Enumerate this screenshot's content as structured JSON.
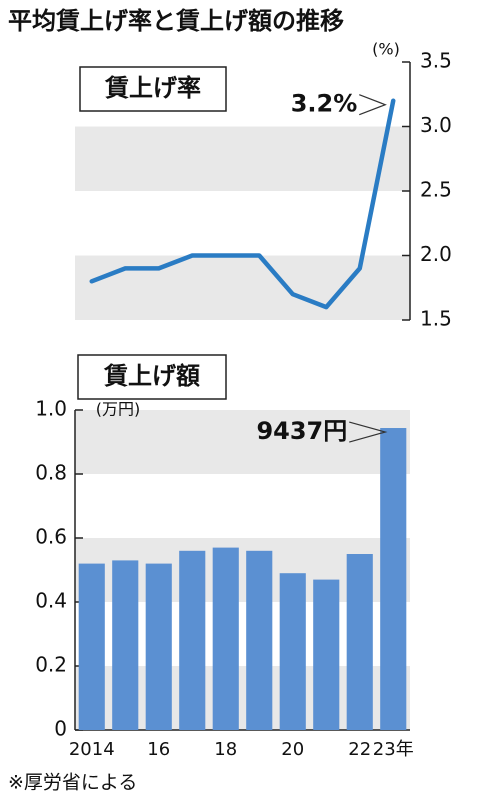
{
  "title": "平均賃上げ率と賃上げ額の推移",
  "source": "※厚労省による",
  "chart_data": [
    {
      "type": "line",
      "label": "賃上げ率",
      "unit": "(%)",
      "values": [
        1.8,
        1.9,
        1.9,
        2.0,
        2.0,
        2.0,
        1.7,
        1.6,
        1.9,
        3.2
      ],
      "value_labels": [
        null,
        null,
        null,
        null,
        null,
        null,
        null,
        null,
        null,
        "3.2%"
      ],
      "color": "#2a7cc4",
      "ylim": [
        1.5,
        3.5
      ],
      "yticks": [
        1.5,
        {
          "value": 2,
          "label": "2.0"
        },
        2.5,
        {
          "value": 3,
          "label": "3.0"
        },
        3.5
      ],
      "grid": "bands"
    },
    {
      "type": "bar",
      "label": "賃上げ額",
      "unit": "(万円)",
      "categories": [
        "2014",
        null,
        "16",
        null,
        "18",
        null,
        "20",
        null,
        "22",
        "23年"
      ],
      "values": [
        0.52,
        0.53,
        0.52,
        0.56,
        0.57,
        0.56,
        0.49,
        0.47,
        0.55,
        0.9437
      ],
      "value_labels": [
        null,
        null,
        null,
        null,
        null,
        null,
        null,
        null,
        null,
        "9437円"
      ],
      "color": "#5b90d2",
      "ylim": [
        0,
        1
      ],
      "yticks": [
        0,
        0.2,
        0.4,
        0.6,
        0.8,
        {
          "value": 1,
          "label": "1.0"
        }
      ],
      "grid": "bands"
    }
  ]
}
